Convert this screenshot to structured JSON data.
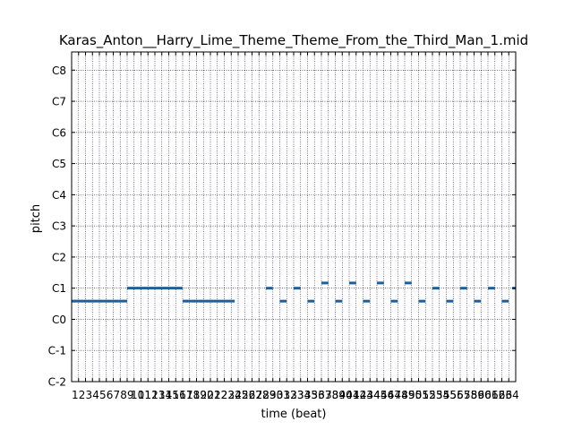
{
  "chart_data": {
    "type": "piano-roll",
    "title": "Karas_Anton__Harry_Lime_Theme_Theme_From_the_Third_Man_1.mid",
    "xlabel": "time (beat)",
    "ylabel": "pitch",
    "xlim": [
      0,
      64
    ],
    "ylim": [
      0,
      127
    ],
    "grid": true,
    "note_color": "#1f5f99",
    "yticks": [
      {
        "value": 0,
        "label": "C-2"
      },
      {
        "value": 12,
        "label": "C-1"
      },
      {
        "value": 24,
        "label": "C0"
      },
      {
        "value": 36,
        "label": "C1"
      },
      {
        "value": 48,
        "label": "C2"
      },
      {
        "value": 60,
        "label": "C3"
      },
      {
        "value": 72,
        "label": "C4"
      },
      {
        "value": 84,
        "label": "C5"
      },
      {
        "value": 96,
        "label": "C6"
      },
      {
        "value": 108,
        "label": "C7"
      },
      {
        "value": 120,
        "label": "C8"
      }
    ],
    "xtick_labels": [
      "1",
      "2",
      "3",
      "4",
      "5",
      "6",
      "7",
      "8",
      "9",
      "10",
      "11",
      "12",
      "13",
      "14",
      "15",
      "16",
      "17",
      "18",
      "19",
      "20",
      "21",
      "22",
      "23",
      "24",
      "25",
      "26",
      "27",
      "28",
      "29",
      "30",
      "31",
      "32",
      "33",
      "34",
      "35",
      "36",
      "37",
      "38",
      "39",
      "40",
      "41",
      "42",
      "43",
      "44",
      "45",
      "46",
      "47",
      "48",
      "49",
      "50",
      "51",
      "52",
      "53",
      "54",
      "55",
      "56",
      "57",
      "58",
      "59",
      "60",
      "61",
      "62",
      "63",
      "64"
    ],
    "notes": [
      {
        "start": 0,
        "end": 8,
        "pitch": 31
      },
      {
        "start": 8,
        "end": 16,
        "pitch": 36
      },
      {
        "start": 16,
        "end": 23.5,
        "pitch": 31
      },
      {
        "start": 28,
        "end": 29,
        "pitch": 36
      },
      {
        "start": 30,
        "end": 31,
        "pitch": 31
      },
      {
        "start": 32,
        "end": 33,
        "pitch": 36
      },
      {
        "start": 34,
        "end": 35,
        "pitch": 31
      },
      {
        "start": 36,
        "end": 37,
        "pitch": 38
      },
      {
        "start": 38,
        "end": 39,
        "pitch": 31
      },
      {
        "start": 40,
        "end": 41,
        "pitch": 38
      },
      {
        "start": 42,
        "end": 43,
        "pitch": 31
      },
      {
        "start": 44,
        "end": 45,
        "pitch": 38
      },
      {
        "start": 46,
        "end": 47,
        "pitch": 31
      },
      {
        "start": 48,
        "end": 49,
        "pitch": 38
      },
      {
        "start": 50,
        "end": 51,
        "pitch": 31
      },
      {
        "start": 52,
        "end": 53,
        "pitch": 36
      },
      {
        "start": 54,
        "end": 55,
        "pitch": 31
      },
      {
        "start": 56,
        "end": 57,
        "pitch": 36
      },
      {
        "start": 58,
        "end": 59,
        "pitch": 31
      },
      {
        "start": 60,
        "end": 61,
        "pitch": 36
      },
      {
        "start": 62,
        "end": 63,
        "pitch": 31
      },
      {
        "start": 63.5,
        "end": 64,
        "pitch": 36
      }
    ]
  }
}
